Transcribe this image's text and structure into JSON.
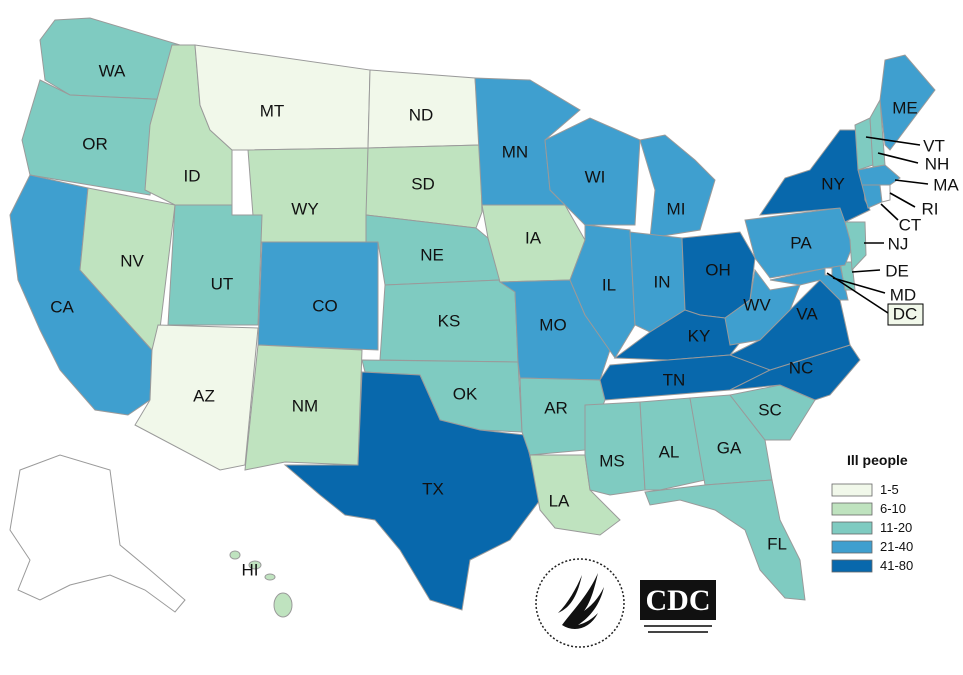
{
  "legend": {
    "title": "Ill people",
    "bins": [
      {
        "label": "1-5",
        "color": "#f1f8ea"
      },
      {
        "label": "6-10",
        "color": "#bfe3bf"
      },
      {
        "label": "11-20",
        "color": "#7fcbc1"
      },
      {
        "label": "21-40",
        "color": "#3f9fcf"
      },
      {
        "label": "41-80",
        "color": "#0868ac"
      }
    ]
  },
  "states": {
    "WA": {
      "label": "WA",
      "bin": "11-20"
    },
    "OR": {
      "label": "OR",
      "bin": "11-20"
    },
    "CA": {
      "label": "CA",
      "bin": "21-40"
    },
    "NV": {
      "label": "NV",
      "bin": "6-10"
    },
    "ID": {
      "label": "ID",
      "bin": "6-10"
    },
    "MT": {
      "label": "MT",
      "bin": "1-5"
    },
    "WY": {
      "label": "WY",
      "bin": "6-10"
    },
    "UT": {
      "label": "UT",
      "bin": "11-20"
    },
    "AZ": {
      "label": "AZ",
      "bin": "1-5"
    },
    "CO": {
      "label": "CO",
      "bin": "21-40"
    },
    "NM": {
      "label": "NM",
      "bin": "6-10"
    },
    "ND": {
      "label": "ND",
      "bin": "1-5"
    },
    "SD": {
      "label": "SD",
      "bin": "6-10"
    },
    "NE": {
      "label": "NE",
      "bin": "11-20"
    },
    "KS": {
      "label": "KS",
      "bin": "11-20"
    },
    "OK": {
      "label": "OK",
      "bin": "11-20"
    },
    "TX": {
      "label": "TX",
      "bin": "41-80"
    },
    "MN": {
      "label": "MN",
      "bin": "21-40"
    },
    "IA": {
      "label": "IA",
      "bin": "6-10"
    },
    "MO": {
      "label": "MO",
      "bin": "21-40"
    },
    "AR": {
      "label": "AR",
      "bin": "11-20"
    },
    "LA": {
      "label": "LA",
      "bin": "6-10"
    },
    "WI": {
      "label": "WI",
      "bin": "21-40"
    },
    "IL": {
      "label": "IL",
      "bin": "21-40"
    },
    "MI": {
      "label": "MI",
      "bin": "21-40"
    },
    "IN": {
      "label": "IN",
      "bin": "21-40"
    },
    "OH": {
      "label": "OH",
      "bin": "41-80"
    },
    "KY": {
      "label": "KY",
      "bin": "41-80"
    },
    "TN": {
      "label": "TN",
      "bin": "41-80"
    },
    "MS": {
      "label": "MS",
      "bin": "11-20"
    },
    "AL": {
      "label": "AL",
      "bin": "11-20"
    },
    "GA": {
      "label": "GA",
      "bin": "11-20"
    },
    "FL": {
      "label": "FL",
      "bin": "11-20"
    },
    "SC": {
      "label": "SC",
      "bin": "11-20"
    },
    "NC": {
      "label": "NC",
      "bin": "41-80"
    },
    "VA": {
      "label": "VA",
      "bin": "41-80"
    },
    "WV": {
      "label": "WV",
      "bin": "21-40"
    },
    "PA": {
      "label": "PA",
      "bin": "21-40"
    },
    "NY": {
      "label": "NY",
      "bin": "41-80"
    },
    "ME": {
      "label": "ME",
      "bin": "21-40"
    },
    "VT": {
      "label": "VT",
      "bin": "11-20"
    },
    "NH": {
      "label": "NH",
      "bin": "11-20"
    },
    "MA": {
      "label": "MA",
      "bin": "21-40"
    },
    "RI": {
      "label": "RI",
      "bin": "none"
    },
    "CT": {
      "label": "CT",
      "bin": "21-40"
    },
    "NJ": {
      "label": "NJ",
      "bin": "11-20"
    },
    "DE": {
      "label": "DE",
      "bin": "11-20"
    },
    "MD": {
      "label": "MD",
      "bin": "21-40"
    },
    "DC": {
      "label": "DC",
      "bin": "none"
    },
    "AK": {
      "label": "",
      "bin": "none"
    },
    "HI": {
      "label": "HI",
      "bin": "6-10"
    }
  },
  "logos": {
    "cdc_text": "CDC",
    "hhs_icon": "hhs-eagle-seal-icon",
    "cdc_icon": "cdc-logo-icon"
  }
}
